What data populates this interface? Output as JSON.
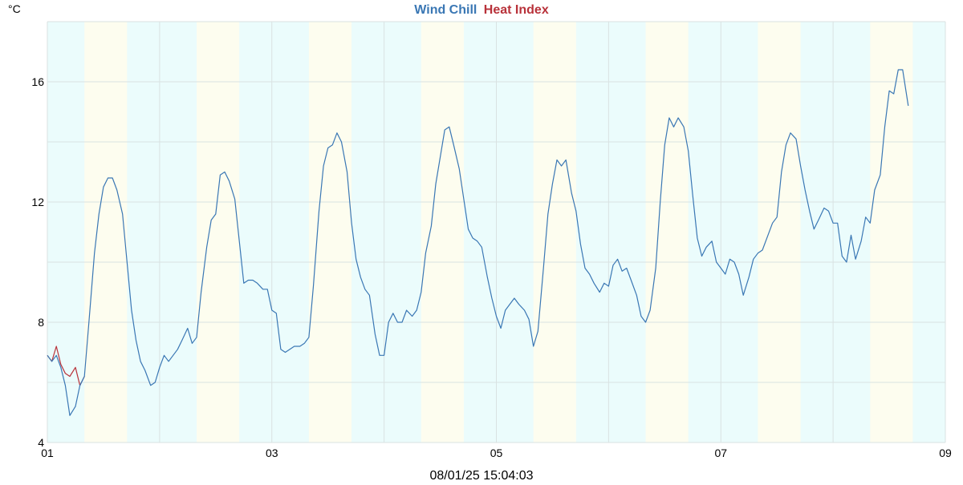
{
  "chart_data": {
    "type": "line",
    "title_parts": [
      {
        "text": "Wind Chill",
        "color": "#3a77b4"
      },
      {
        "text": "Heat Index",
        "color": "#b8323a"
      }
    ],
    "y_unit": "°C",
    "timestamp": "08/01/25 15:04:03",
    "xlim": [
      0,
      8
    ],
    "ylim": [
      4,
      18
    ],
    "x_ticks": [
      {
        "value": 0,
        "label": "01"
      },
      {
        "value": 2,
        "label": "03"
      },
      {
        "value": 4,
        "label": "05"
      },
      {
        "value": 6,
        "label": "07"
      },
      {
        "value": 8,
        "label": "09"
      }
    ],
    "y_ticks": [
      {
        "value": 4,
        "label": "4"
      },
      {
        "value": 8,
        "label": "8"
      },
      {
        "value": 12,
        "label": "12"
      },
      {
        "value": 16,
        "label": "16"
      }
    ],
    "grid": true,
    "background_bands": {
      "night_color": "#ebfcfc",
      "day_color": "#fdfdef",
      "day_periods": [
        [
          0.33,
          0.71
        ],
        [
          1.33,
          1.71
        ],
        [
          2.33,
          2.71
        ],
        [
          3.33,
          3.71
        ],
        [
          4.33,
          4.71
        ],
        [
          5.33,
          5.71
        ],
        [
          6.33,
          6.71
        ],
        [
          7.33,
          7.71
        ]
      ]
    },
    "series": [
      {
        "name": "Heat Index",
        "color": "#b8323a",
        "x": [
          0.0,
          0.04,
          0.08,
          0.12,
          0.16,
          0.2,
          0.25,
          0.29,
          0.33
        ],
        "y": [
          6.9,
          6.7,
          7.2,
          6.6,
          6.3,
          6.2,
          6.5,
          5.9,
          6.2
        ]
      },
      {
        "name": "Wind Chill",
        "color": "#3a77b4",
        "x": [
          0.0,
          0.04,
          0.08,
          0.12,
          0.16,
          0.2,
          0.25,
          0.29,
          0.33,
          0.37,
          0.42,
          0.46,
          0.5,
          0.54,
          0.58,
          0.62,
          0.67,
          0.71,
          0.75,
          0.79,
          0.83,
          0.87,
          0.92,
          0.96,
          1.0,
          1.04,
          1.08,
          1.12,
          1.16,
          1.2,
          1.25,
          1.29,
          1.33,
          1.37,
          1.42,
          1.46,
          1.5,
          1.54,
          1.58,
          1.62,
          1.67,
          1.71,
          1.75,
          1.79,
          1.83,
          1.87,
          1.92,
          1.96,
          2.0,
          2.04,
          2.08,
          2.12,
          2.16,
          2.2,
          2.25,
          2.29,
          2.33,
          2.37,
          2.42,
          2.46,
          2.5,
          2.54,
          2.58,
          2.62,
          2.67,
          2.71,
          2.75,
          2.79,
          2.83,
          2.87,
          2.92,
          2.96,
          3.0,
          3.04,
          3.08,
          3.12,
          3.16,
          3.2,
          3.25,
          3.29,
          3.33,
          3.37,
          3.42,
          3.46,
          3.5,
          3.54,
          3.58,
          3.62,
          3.67,
          3.71,
          3.75,
          3.79,
          3.83,
          3.87,
          3.92,
          3.96,
          4.0,
          4.04,
          4.08,
          4.12,
          4.16,
          4.2,
          4.25,
          4.29,
          4.33,
          4.37,
          4.42,
          4.46,
          4.5,
          4.54,
          4.58,
          4.62,
          4.67,
          4.71,
          4.75,
          4.79,
          4.83,
          4.87,
          4.92,
          4.96,
          5.0,
          5.04,
          5.08,
          5.12,
          5.16,
          5.2,
          5.25,
          5.29,
          5.33,
          5.37,
          5.42,
          5.46,
          5.5,
          5.54,
          5.58,
          5.62,
          5.67,
          5.71,
          5.75,
          5.79,
          5.83,
          5.87,
          5.92,
          5.96,
          6.0,
          6.04,
          6.08,
          6.12,
          6.16,
          6.2,
          6.25,
          6.29,
          6.33,
          6.37,
          6.42,
          6.46,
          6.5,
          6.54,
          6.58,
          6.62,
          6.67,
          6.71,
          6.75,
          6.79,
          6.83,
          6.87,
          6.92,
          6.96,
          7.0,
          7.04,
          7.08,
          7.12,
          7.16,
          7.2,
          7.25,
          7.29,
          7.33,
          7.37,
          7.42,
          7.46,
          7.5,
          7.54,
          7.58,
          7.62,
          7.67
        ],
        "y": [
          6.9,
          6.7,
          6.9,
          6.5,
          5.9,
          4.9,
          5.2,
          5.9,
          6.2,
          8.0,
          10.3,
          11.6,
          12.5,
          12.8,
          12.8,
          12.4,
          11.6,
          10.0,
          8.4,
          7.4,
          6.7,
          6.4,
          5.9,
          6.0,
          6.5,
          6.9,
          6.7,
          6.9,
          7.1,
          7.4,
          7.8,
          7.3,
          7.5,
          9.0,
          10.5,
          11.4,
          11.6,
          12.9,
          13.0,
          12.7,
          12.1,
          10.7,
          9.3,
          9.4,
          9.4,
          9.3,
          9.1,
          9.1,
          8.4,
          8.3,
          7.1,
          7.0,
          7.1,
          7.2,
          7.2,
          7.3,
          7.5,
          9.2,
          11.7,
          13.2,
          13.8,
          13.9,
          14.3,
          14.0,
          13.0,
          11.3,
          10.1,
          9.5,
          9.1,
          8.9,
          7.6,
          6.9,
          6.9,
          8.0,
          8.3,
          8.0,
          8.0,
          8.4,
          8.2,
          8.4,
          9.0,
          10.3,
          11.2,
          12.6,
          13.5,
          14.4,
          14.5,
          13.9,
          13.1,
          12.1,
          11.1,
          10.8,
          10.7,
          10.5,
          9.5,
          8.8,
          8.2,
          7.8,
          8.4,
          8.6,
          8.8,
          8.6,
          8.4,
          8.1,
          7.2,
          7.7,
          9.8,
          11.6,
          12.6,
          13.4,
          13.2,
          13.4,
          12.3,
          11.7,
          10.6,
          9.8,
          9.6,
          9.3,
          9.0,
          9.3,
          9.2,
          9.9,
          10.1,
          9.7,
          9.8,
          9.4,
          8.9,
          8.2,
          8.0,
          8.4,
          9.8,
          12.0,
          13.9,
          14.8,
          14.5,
          14.8,
          14.5,
          13.7,
          12.2,
          10.8,
          10.2,
          10.5,
          10.7,
          10.0,
          9.8,
          9.6,
          10.1,
          10.0,
          9.6,
          8.9,
          9.5,
          10.1,
          10.3,
          10.4,
          10.9,
          11.3,
          11.5,
          13.0,
          13.9,
          14.3,
          14.1,
          13.2,
          12.4,
          11.7,
          11.1,
          11.4,
          11.8,
          11.7,
          11.3,
          11.3,
          10.2,
          10.0,
          10.9,
          10.1,
          10.7,
          11.5,
          11.3,
          12.4,
          12.9,
          14.5,
          15.7,
          15.6,
          16.4,
          16.4,
          15.2
        ]
      }
    ]
  }
}
